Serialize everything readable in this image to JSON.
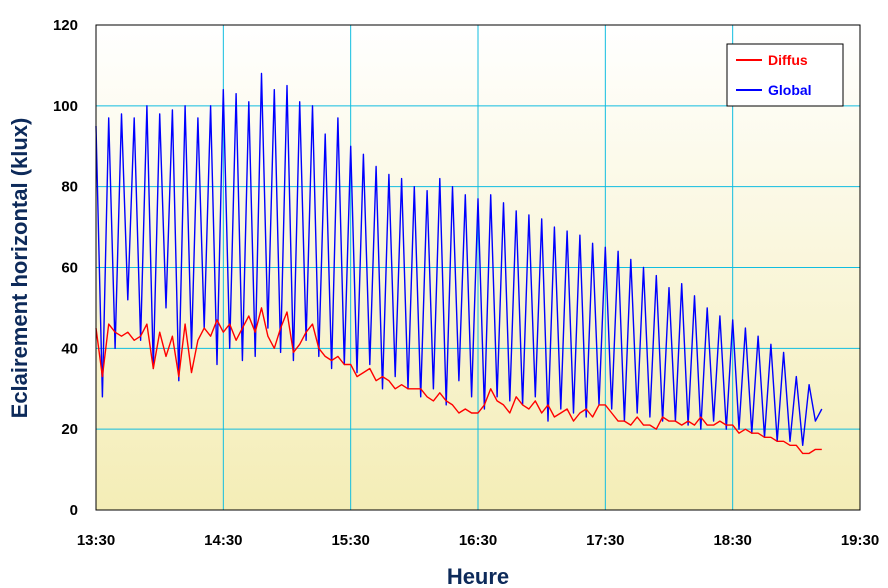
{
  "chart_data": {
    "type": "line",
    "xlabel": "Heure",
    "ylabel": "Eclairement horizontal (klux)",
    "x_ticks": [
      "13:30",
      "14:30",
      "15:30",
      "16:30",
      "17:30",
      "18:30",
      "19:30"
    ],
    "y_ticks": [
      "0",
      "20",
      "40",
      "60",
      "80",
      "100",
      "120"
    ],
    "xlim": [
      "13:30",
      "19:30"
    ],
    "ylim": [
      0,
      120
    ],
    "grid": true,
    "legend_position": "top-right",
    "series": [
      {
        "name": "Diffus",
        "color": "#ff0000",
        "x": [
          "13:30",
          "13:33",
          "13:36",
          "13:39",
          "13:42",
          "13:45",
          "13:48",
          "13:51",
          "13:54",
          "13:57",
          "14:00",
          "14:03",
          "14:06",
          "14:09",
          "14:12",
          "14:15",
          "14:18",
          "14:21",
          "14:24",
          "14:27",
          "14:30",
          "14:33",
          "14:36",
          "14:39",
          "14:42",
          "14:45",
          "14:48",
          "14:51",
          "14:54",
          "14:57",
          "15:00",
          "15:03",
          "15:06",
          "15:09",
          "15:12",
          "15:15",
          "15:18",
          "15:21",
          "15:24",
          "15:27",
          "15:30",
          "15:33",
          "15:36",
          "15:39",
          "15:42",
          "15:45",
          "15:48",
          "15:51",
          "15:54",
          "15:57",
          "16:00",
          "16:03",
          "16:06",
          "16:09",
          "16:12",
          "16:15",
          "16:18",
          "16:21",
          "16:24",
          "16:27",
          "16:30",
          "16:33",
          "16:36",
          "16:39",
          "16:42",
          "16:45",
          "16:48",
          "16:51",
          "16:54",
          "16:57",
          "17:00",
          "17:03",
          "17:06",
          "17:09",
          "17:12",
          "17:15",
          "17:18",
          "17:21",
          "17:24",
          "17:27",
          "17:30",
          "17:33",
          "17:36",
          "17:39",
          "17:42",
          "17:45",
          "17:48",
          "17:51",
          "17:54",
          "17:57",
          "18:00",
          "18:03",
          "18:06",
          "18:09",
          "18:12",
          "18:15",
          "18:18",
          "18:21",
          "18:24",
          "18:27",
          "18:30",
          "18:33",
          "18:36",
          "18:39",
          "18:42",
          "18:45",
          "18:48",
          "18:51",
          "18:54",
          "18:57",
          "19:00",
          "19:03",
          "19:06",
          "19:09",
          "19:12"
        ],
        "values": [
          45,
          33,
          46,
          44,
          43,
          44,
          42,
          43,
          46,
          35,
          44,
          38,
          43,
          33,
          46,
          34,
          42,
          45,
          43,
          47,
          44,
          46,
          42,
          45,
          48,
          44,
          50,
          43,
          40,
          45,
          49,
          39,
          41,
          44,
          46,
          40,
          38,
          37,
          38,
          36,
          36,
          33,
          34,
          35,
          32,
          33,
          32,
          30,
          31,
          30,
          30,
          30,
          28,
          27,
          29,
          27,
          26,
          24,
          25,
          24,
          24,
          26,
          30,
          27,
          26,
          24,
          28,
          26,
          25,
          27,
          24,
          26,
          23,
          24,
          25,
          22,
          24,
          25,
          23,
          26,
          26,
          24,
          22,
          22,
          21,
          23,
          21,
          21,
          20,
          23,
          22,
          22,
          21,
          22,
          21,
          23,
          21,
          21,
          22,
          21,
          21,
          19,
          20,
          19,
          19,
          18,
          18,
          17,
          17,
          16,
          16,
          14,
          14,
          15,
          15
        ]
      },
      {
        "name": "Global",
        "color": "#0000ff",
        "x": [
          "13:30",
          "13:33",
          "13:36",
          "13:39",
          "13:42",
          "13:45",
          "13:48",
          "13:51",
          "13:54",
          "13:57",
          "14:00",
          "14:03",
          "14:06",
          "14:09",
          "14:12",
          "14:15",
          "14:18",
          "14:21",
          "14:24",
          "14:27",
          "14:30",
          "14:33",
          "14:36",
          "14:39",
          "14:42",
          "14:45",
          "14:48",
          "14:51",
          "14:54",
          "14:57",
          "15:00",
          "15:03",
          "15:06",
          "15:09",
          "15:12",
          "15:15",
          "15:18",
          "15:21",
          "15:24",
          "15:27",
          "15:30",
          "15:33",
          "15:36",
          "15:39",
          "15:42",
          "15:45",
          "15:48",
          "15:51",
          "15:54",
          "15:57",
          "16:00",
          "16:03",
          "16:06",
          "16:09",
          "16:12",
          "16:15",
          "16:18",
          "16:21",
          "16:24",
          "16:27",
          "16:30",
          "16:33",
          "16:36",
          "16:39",
          "16:42",
          "16:45",
          "16:48",
          "16:51",
          "16:54",
          "16:57",
          "17:00",
          "17:03",
          "17:06",
          "17:09",
          "17:12",
          "17:15",
          "17:18",
          "17:21",
          "17:24",
          "17:27",
          "17:30",
          "17:33",
          "17:36",
          "17:39",
          "17:42",
          "17:45",
          "17:48",
          "17:51",
          "17:54",
          "17:57",
          "18:00",
          "18:03",
          "18:06",
          "18:09",
          "18:12",
          "18:15",
          "18:18",
          "18:21",
          "18:24",
          "18:27",
          "18:30",
          "18:33",
          "18:36",
          "18:39",
          "18:42",
          "18:45",
          "18:48",
          "18:51",
          "18:54",
          "18:57",
          "19:00",
          "19:03",
          "19:06",
          "19:09",
          "19:12"
        ],
        "values": [
          95,
          28,
          97,
          40,
          98,
          52,
          97,
          42,
          100,
          35,
          98,
          50,
          99,
          32,
          100,
          40,
          97,
          45,
          100,
          36,
          104,
          40,
          103,
          37,
          101,
          38,
          108,
          45,
          104,
          39,
          105,
          37,
          101,
          42,
          100,
          38,
          93,
          35,
          97,
          36,
          90,
          34,
          88,
          36,
          85,
          30,
          83,
          33,
          82,
          30,
          80,
          28,
          79,
          30,
          82,
          26,
          80,
          32,
          78,
          28,
          77,
          25,
          78,
          28,
          76,
          27,
          74,
          26,
          73,
          28,
          72,
          22,
          70,
          25,
          69,
          24,
          68,
          23,
          66,
          26,
          65,
          25,
          64,
          22,
          62,
          24,
          60,
          23,
          58,
          22,
          55,
          22,
          56,
          21,
          53,
          20,
          50,
          22,
          48,
          20,
          47,
          20,
          45,
          19,
          43,
          18,
          41,
          17,
          39,
          17,
          33,
          16,
          31,
          22,
          25
        ]
      }
    ]
  }
}
